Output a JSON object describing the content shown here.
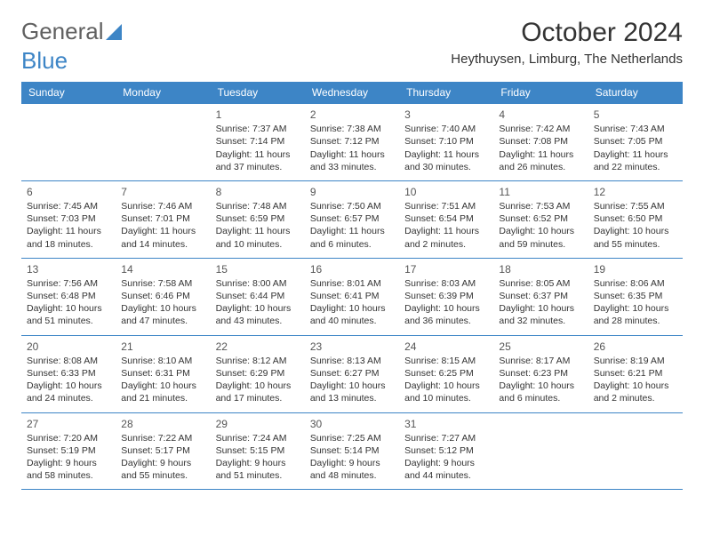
{
  "logo": {
    "text1": "General",
    "text2": "Blue"
  },
  "title": "October 2024",
  "location": "Heythuysen, Limburg, The Netherlands",
  "colors": {
    "header_bg": "#3d85c6",
    "header_text": "#ffffff",
    "border": "#3d85c6",
    "text": "#333333"
  },
  "weekdays": [
    "Sunday",
    "Monday",
    "Tuesday",
    "Wednesday",
    "Thursday",
    "Friday",
    "Saturday"
  ],
  "weeks": [
    [
      null,
      null,
      {
        "n": "1",
        "sr": "Sunrise: 7:37 AM",
        "ss": "Sunset: 7:14 PM",
        "dl": "Daylight: 11 hours and 37 minutes."
      },
      {
        "n": "2",
        "sr": "Sunrise: 7:38 AM",
        "ss": "Sunset: 7:12 PM",
        "dl": "Daylight: 11 hours and 33 minutes."
      },
      {
        "n": "3",
        "sr": "Sunrise: 7:40 AM",
        "ss": "Sunset: 7:10 PM",
        "dl": "Daylight: 11 hours and 30 minutes."
      },
      {
        "n": "4",
        "sr": "Sunrise: 7:42 AM",
        "ss": "Sunset: 7:08 PM",
        "dl": "Daylight: 11 hours and 26 minutes."
      },
      {
        "n": "5",
        "sr": "Sunrise: 7:43 AM",
        "ss": "Sunset: 7:05 PM",
        "dl": "Daylight: 11 hours and 22 minutes."
      }
    ],
    [
      {
        "n": "6",
        "sr": "Sunrise: 7:45 AM",
        "ss": "Sunset: 7:03 PM",
        "dl": "Daylight: 11 hours and 18 minutes."
      },
      {
        "n": "7",
        "sr": "Sunrise: 7:46 AM",
        "ss": "Sunset: 7:01 PM",
        "dl": "Daylight: 11 hours and 14 minutes."
      },
      {
        "n": "8",
        "sr": "Sunrise: 7:48 AM",
        "ss": "Sunset: 6:59 PM",
        "dl": "Daylight: 11 hours and 10 minutes."
      },
      {
        "n": "9",
        "sr": "Sunrise: 7:50 AM",
        "ss": "Sunset: 6:57 PM",
        "dl": "Daylight: 11 hours and 6 minutes."
      },
      {
        "n": "10",
        "sr": "Sunrise: 7:51 AM",
        "ss": "Sunset: 6:54 PM",
        "dl": "Daylight: 11 hours and 2 minutes."
      },
      {
        "n": "11",
        "sr": "Sunrise: 7:53 AM",
        "ss": "Sunset: 6:52 PM",
        "dl": "Daylight: 10 hours and 59 minutes."
      },
      {
        "n": "12",
        "sr": "Sunrise: 7:55 AM",
        "ss": "Sunset: 6:50 PM",
        "dl": "Daylight: 10 hours and 55 minutes."
      }
    ],
    [
      {
        "n": "13",
        "sr": "Sunrise: 7:56 AM",
        "ss": "Sunset: 6:48 PM",
        "dl": "Daylight: 10 hours and 51 minutes."
      },
      {
        "n": "14",
        "sr": "Sunrise: 7:58 AM",
        "ss": "Sunset: 6:46 PM",
        "dl": "Daylight: 10 hours and 47 minutes."
      },
      {
        "n": "15",
        "sr": "Sunrise: 8:00 AM",
        "ss": "Sunset: 6:44 PM",
        "dl": "Daylight: 10 hours and 43 minutes."
      },
      {
        "n": "16",
        "sr": "Sunrise: 8:01 AM",
        "ss": "Sunset: 6:41 PM",
        "dl": "Daylight: 10 hours and 40 minutes."
      },
      {
        "n": "17",
        "sr": "Sunrise: 8:03 AM",
        "ss": "Sunset: 6:39 PM",
        "dl": "Daylight: 10 hours and 36 minutes."
      },
      {
        "n": "18",
        "sr": "Sunrise: 8:05 AM",
        "ss": "Sunset: 6:37 PM",
        "dl": "Daylight: 10 hours and 32 minutes."
      },
      {
        "n": "19",
        "sr": "Sunrise: 8:06 AM",
        "ss": "Sunset: 6:35 PM",
        "dl": "Daylight: 10 hours and 28 minutes."
      }
    ],
    [
      {
        "n": "20",
        "sr": "Sunrise: 8:08 AM",
        "ss": "Sunset: 6:33 PM",
        "dl": "Daylight: 10 hours and 24 minutes."
      },
      {
        "n": "21",
        "sr": "Sunrise: 8:10 AM",
        "ss": "Sunset: 6:31 PM",
        "dl": "Daylight: 10 hours and 21 minutes."
      },
      {
        "n": "22",
        "sr": "Sunrise: 8:12 AM",
        "ss": "Sunset: 6:29 PM",
        "dl": "Daylight: 10 hours and 17 minutes."
      },
      {
        "n": "23",
        "sr": "Sunrise: 8:13 AM",
        "ss": "Sunset: 6:27 PM",
        "dl": "Daylight: 10 hours and 13 minutes."
      },
      {
        "n": "24",
        "sr": "Sunrise: 8:15 AM",
        "ss": "Sunset: 6:25 PM",
        "dl": "Daylight: 10 hours and 10 minutes."
      },
      {
        "n": "25",
        "sr": "Sunrise: 8:17 AM",
        "ss": "Sunset: 6:23 PM",
        "dl": "Daylight: 10 hours and 6 minutes."
      },
      {
        "n": "26",
        "sr": "Sunrise: 8:19 AM",
        "ss": "Sunset: 6:21 PM",
        "dl": "Daylight: 10 hours and 2 minutes."
      }
    ],
    [
      {
        "n": "27",
        "sr": "Sunrise: 7:20 AM",
        "ss": "Sunset: 5:19 PM",
        "dl": "Daylight: 9 hours and 58 minutes."
      },
      {
        "n": "28",
        "sr": "Sunrise: 7:22 AM",
        "ss": "Sunset: 5:17 PM",
        "dl": "Daylight: 9 hours and 55 minutes."
      },
      {
        "n": "29",
        "sr": "Sunrise: 7:24 AM",
        "ss": "Sunset: 5:15 PM",
        "dl": "Daylight: 9 hours and 51 minutes."
      },
      {
        "n": "30",
        "sr": "Sunrise: 7:25 AM",
        "ss": "Sunset: 5:14 PM",
        "dl": "Daylight: 9 hours and 48 minutes."
      },
      {
        "n": "31",
        "sr": "Sunrise: 7:27 AM",
        "ss": "Sunset: 5:12 PM",
        "dl": "Daylight: 9 hours and 44 minutes."
      },
      null,
      null
    ]
  ]
}
